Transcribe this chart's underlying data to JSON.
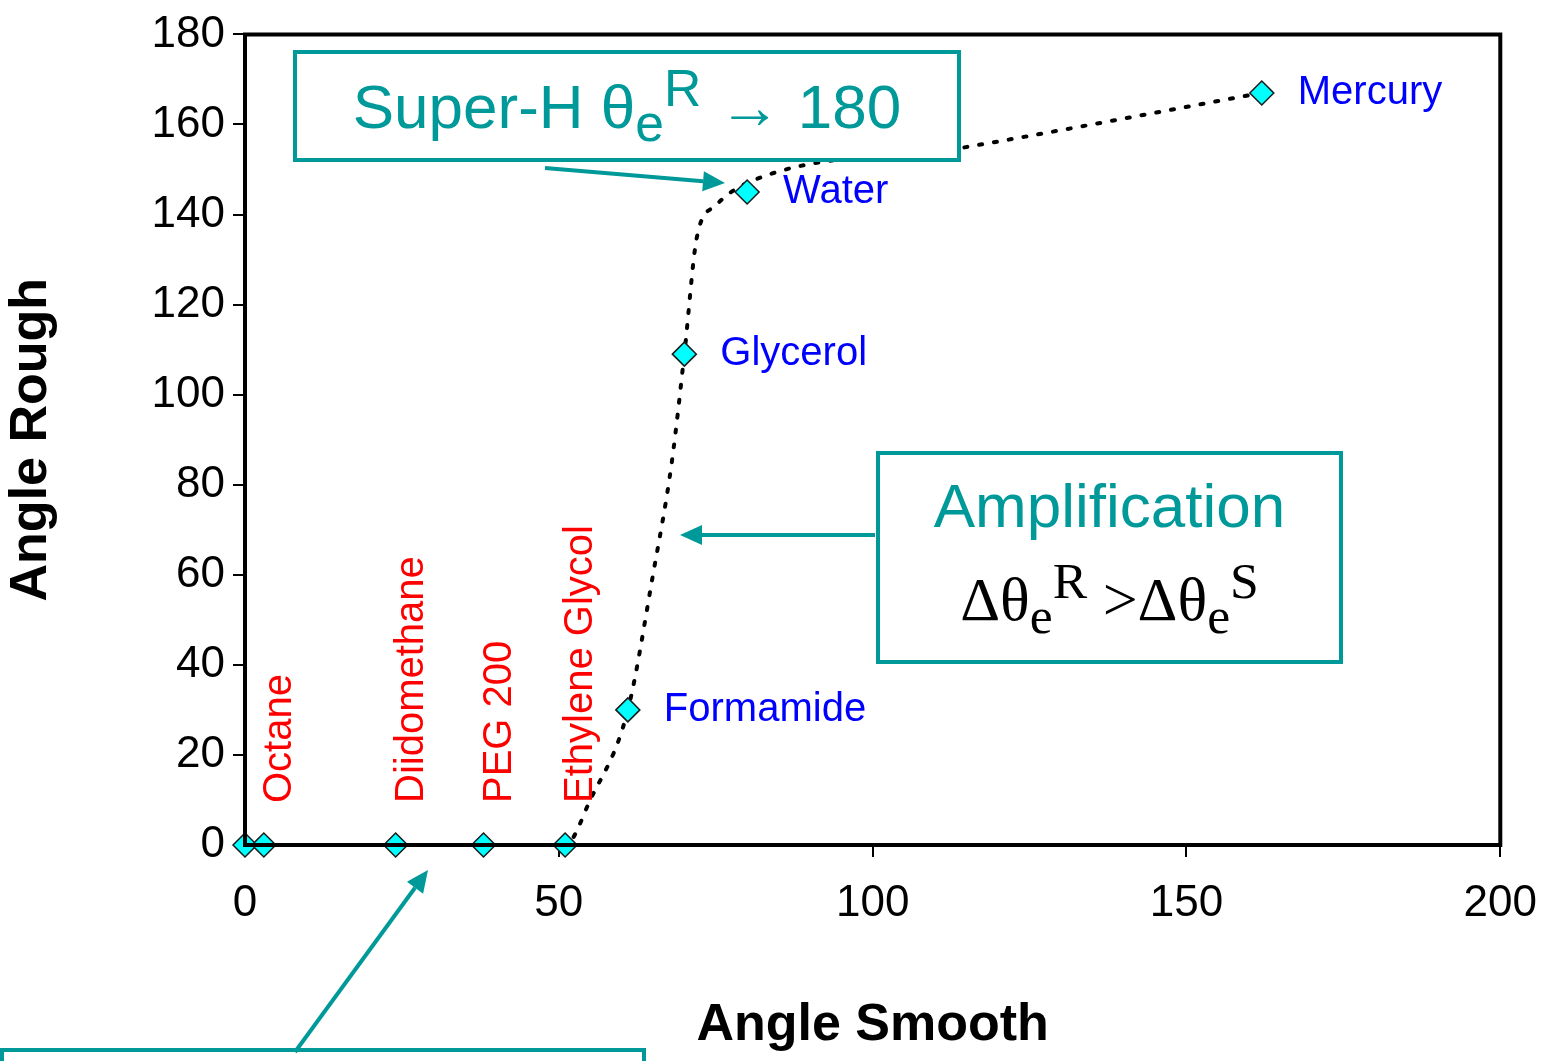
{
  "chart_data": {
    "type": "scatter",
    "xlabel": "Angle Smooth",
    "ylabel": "Angle Rough",
    "xlim": [
      0,
      200
    ],
    "ylim": [
      0,
      180
    ],
    "xticks": [
      0,
      50,
      100,
      150,
      200
    ],
    "yticks": [
      0,
      20,
      40,
      60,
      80,
      100,
      120,
      140,
      160,
      180
    ],
    "grid": false,
    "legend": false,
    "marker": "diamond",
    "series": [
      {
        "color": "#00ffff",
        "x": [
          0,
          3,
          24,
          38,
          51,
          61,
          70,
          80,
          162
        ],
        "values": [
          0,
          0,
          0,
          0,
          0,
          30,
          109,
          145,
          167
        ]
      },
      {
        "type": "line",
        "color": "#000000",
        "line_style": "dotted",
        "marker": "none",
        "x": [
          41,
          47,
          51,
          55,
          61,
          65,
          68,
          70,
          72,
          75,
          80,
          115,
          162
        ],
        "values": [
          0,
          0,
          0,
          10,
          30,
          60,
          85,
          109,
          135,
          142,
          147,
          155,
          167
        ]
      }
    ],
    "annotations": [
      {
        "text": "Octane",
        "x": 3,
        "y": 0
      },
      {
        "text": "Diidomethane",
        "x": 24,
        "y": 0
      },
      {
        "text": "PEG 200",
        "x": 38,
        "y": 0
      },
      {
        "text": "Ethylene Glycol",
        "x": 51,
        "y": 0
      },
      {
        "text": "Formamide",
        "x": 61,
        "y": 30
      },
      {
        "text": "Glycerol",
        "x": 70,
        "y": 109
      },
      {
        "text": "Water",
        "x": 80,
        "y": 145
      },
      {
        "text": "Mercury",
        "x": 162,
        "y": 167
      },
      "Super-H  θ$_{e}$$^{R}$ → 180",
      "Amplification\nΔθ$_{e}$$^{R}$ >Δθ$_{e}$$^{S}$"
    ]
  }
}
